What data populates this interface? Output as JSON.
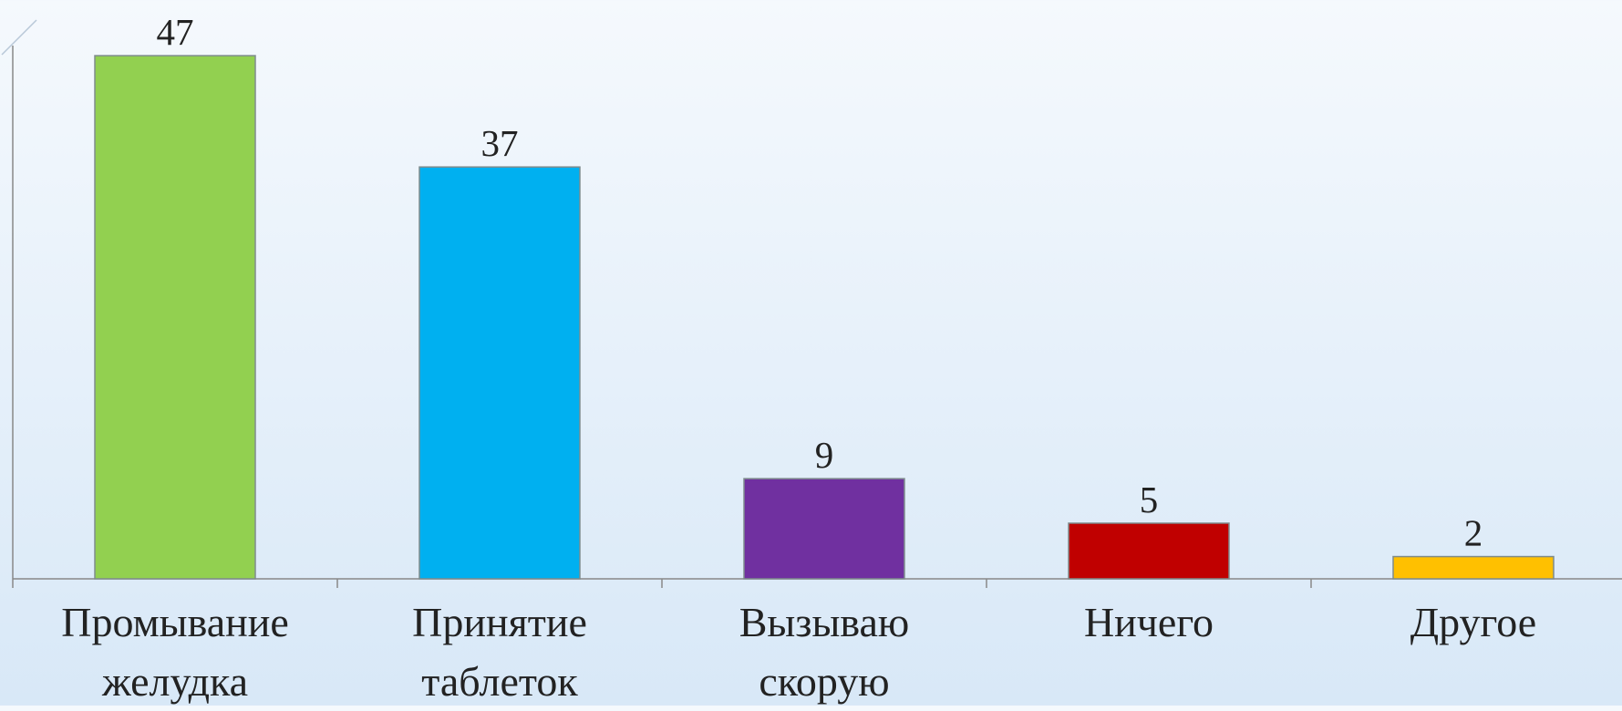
{
  "chart_data": {
    "type": "bar",
    "categories": [
      "Промывание\nжелудка",
      "Принятие\nтаблеток",
      "Вызываю\nскорую",
      "Ничего",
      "Другое"
    ],
    "values": [
      47,
      37,
      9,
      5,
      2
    ],
    "colors": [
      "#92d050",
      "#00b0f0",
      "#7030a0",
      "#c00000",
      "#ffc000"
    ],
    "ylim": [
      0,
      52
    ]
  }
}
